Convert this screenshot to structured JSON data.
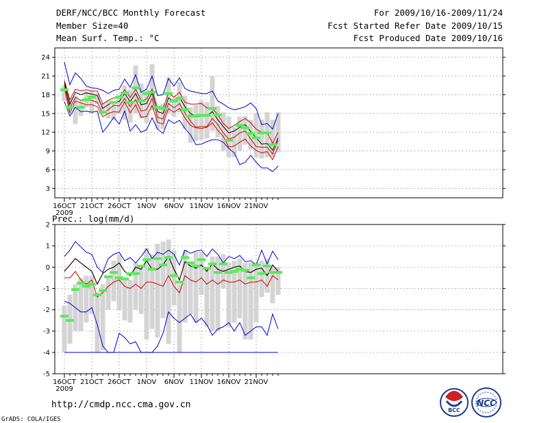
{
  "header": {
    "title": "DERF/NCC/BCC Monthly Forecast",
    "member_size": "Member Size=40",
    "temp_label": "Mean Surf. Temp.: °C",
    "period": "For 2009/10/16-2009/11/24",
    "refer_date": "Fcst Started Refer Date 2009/10/15",
    "produced_date": "Fcst Produced Date 2009/10/16"
  },
  "footer": {
    "url": "http://cmdp.ncc.cma.gov.cn",
    "grads": "GrADS: COLA/IGES",
    "logo_bcc": "BCC",
    "logo_ncc": "NCC"
  },
  "colors": {
    "max_min": "#0000cc",
    "spread": "#cc0000",
    "mean": "#000000",
    "obs": "#55ee55",
    "box": "#d4d4d4"
  },
  "chart_data": [
    {
      "type": "line",
      "title": "Mean Surf. Temp.: °C",
      "x_tick_labels": [
        "16OCT",
        "21OCT",
        "26OCT",
        "1NOV",
        "6NOV",
        "11NOV",
        "16NOV",
        "21NOV"
      ],
      "x_tick_days": [
        1,
        6,
        11,
        16,
        21,
        26,
        31,
        36
      ],
      "year_label": "2009",
      "ylim": [
        1.5,
        25.5
      ],
      "y_ticks": [
        3,
        6,
        9,
        12,
        15,
        18,
        21,
        24
      ],
      "grid": true,
      "days": [
        1,
        2,
        3,
        4,
        5,
        6,
        7,
        8,
        9,
        10,
        11,
        12,
        13,
        14,
        15,
        16,
        17,
        18,
        19,
        20,
        21,
        22,
        23,
        24,
        25,
        26,
        27,
        28,
        29,
        30,
        31,
        32,
        33,
        34,
        35,
        36,
        37,
        38,
        39,
        40
      ],
      "series": [
        {
          "name": "max",
          "values": [
            23.2,
            19.6,
            21.5,
            20.6,
            19.4,
            19.1,
            19.0,
            18.7,
            18.2,
            18.7,
            18.9,
            20.5,
            19.2,
            21.2,
            18.4,
            18.9,
            21.0,
            17.9,
            18.0,
            20.6,
            19.4,
            20.7,
            19.0,
            18.6,
            18.4,
            18.2,
            18.2,
            18.6,
            17.0,
            16.5,
            15.9,
            15.6,
            15.8,
            16.1,
            16.7,
            15.8,
            13.2,
            13.4,
            12.5,
            15.0
          ]
        },
        {
          "name": "upper",
          "values": [
            20.3,
            17.2,
            18.9,
            18.6,
            18.8,
            18.6,
            18.6,
            16.5,
            17.1,
            17.5,
            17.5,
            18.8,
            17.6,
            18.9,
            17.1,
            17.3,
            18.9,
            15.9,
            15.8,
            18.3,
            17.6,
            18.4,
            16.8,
            16.5,
            16.5,
            16.6,
            15.9,
            15.8,
            14.8,
            13.4,
            12.6,
            13.1,
            13.7,
            14.2,
            13.5,
            12.5,
            12.0,
            12.0,
            10.2,
            12.0
          ]
        },
        {
          "name": "mean",
          "values": [
            20.0,
            16.5,
            18.4,
            18.0,
            18.3,
            18.1,
            17.9,
            15.8,
            16.4,
            16.9,
            16.9,
            18.2,
            16.9,
            18.2,
            16.4,
            16.6,
            18.3,
            15.3,
            15.0,
            17.5,
            16.9,
            17.6,
            16.1,
            15.0,
            14.6,
            14.6,
            14.6,
            15.3,
            14.0,
            12.9,
            11.9,
            12.2,
            12.8,
            13.2,
            12.1,
            11.1,
            10.1,
            10.2,
            9.1,
            11.1
          ]
        },
        {
          "name": "lower",
          "values": [
            19.6,
            15.8,
            17.6,
            17.1,
            17.3,
            17.1,
            16.8,
            15.0,
            15.6,
            16.3,
            16.2,
            17.4,
            16.1,
            17.2,
            15.4,
            15.6,
            17.4,
            14.4,
            14.1,
            16.6,
            15.9,
            16.6,
            15.1,
            13.8,
            12.8,
            12.9,
            12.9,
            14.2,
            13.2,
            11.9,
            10.9,
            11.2,
            11.9,
            12.2,
            10.9,
            9.7,
            9.6,
            9.6,
            8.5,
            10.7
          ]
        },
        {
          "name": "lower2",
          "values": [
            19.1,
            15.1,
            17.0,
            16.7,
            16.4,
            16.4,
            16.1,
            14.5,
            15.0,
            15.3,
            15.2,
            16.9,
            15.1,
            16.4,
            14.4,
            14.5,
            16.3,
            13.6,
            13.3,
            15.8,
            15.2,
            15.8,
            14.3,
            13.1,
            12.7,
            12.6,
            12.8,
            13.5,
            12.3,
            11.3,
            9.6,
            9.8,
            10.4,
            10.9,
            9.8,
            9.1,
            8.7,
            8.9,
            7.6,
            9.7
          ]
        },
        {
          "name": "min",
          "values": [
            16.9,
            14.6,
            16.0,
            15.3,
            15.4,
            15.2,
            15.4,
            12.0,
            13.1,
            14.4,
            13.3,
            15.4,
            12.2,
            13.2,
            12.0,
            12.4,
            14.3,
            12.5,
            11.8,
            14.0,
            13.4,
            13.9,
            12.6,
            11.6,
            10.0,
            10.1,
            10.5,
            10.8,
            10.8,
            10.4,
            9.4,
            8.7,
            6.8,
            7.2,
            8.3,
            7.2,
            6.3,
            6.3,
            5.7,
            6.6
          ]
        },
        {
          "name": "box_top",
          "values": [
            19.5,
            17.5,
            17.8,
            17.0,
            18.5,
            18.6,
            18.2,
            16.6,
            17.0,
            17.0,
            18.0,
            19.5,
            18.8,
            22.7,
            19.8,
            18.8,
            22.9,
            16.0,
            16.6,
            20.8,
            17.5,
            20.0,
            17.8,
            16.0,
            16.3,
            17.1,
            16.8,
            21.0,
            16.2,
            15.2,
            14.5,
            12.8,
            14.5,
            14.6,
            14.0,
            15.0,
            14.0,
            15.2,
            14.0,
            15.2
          ]
        },
        {
          "name": "box_bottom",
          "values": [
            17.0,
            15.4,
            13.3,
            14.6,
            16.0,
            15.1,
            16.5,
            15.2,
            14.2,
            14.0,
            15.0,
            14.0,
            13.5,
            15.0,
            14.2,
            13.5,
            15.5,
            12.5,
            12.5,
            15.0,
            14.5,
            15.2,
            12.5,
            10.3,
            10.6,
            10.8,
            11.0,
            12.2,
            11.2,
            9.0,
            8.0,
            8.0,
            9.0,
            10.0,
            9.2,
            8.0,
            7.8,
            8.0,
            8.0,
            8.8
          ]
        },
        {
          "name": "observed",
          "values": [
            18.8,
            16.0,
            null,
            16.0,
            17.2,
            17.6,
            null,
            15.2,
            null,
            16.8,
            17.6,
            18.3,
            16.8,
            19.1,
            17.0,
            18.2,
            18.4,
            16.0,
            15.8,
            18.2,
            17.0,
            17.4,
            15.6,
            14.6,
            14.6,
            14.7,
            14.7,
            15.8,
            14.8,
            null,
            10.7,
            null,
            13.1,
            12.7,
            11.8,
            11.1,
            11.9,
            11.9,
            10.0,
            null
          ]
        }
      ]
    },
    {
      "type": "line",
      "title": "Prec.: log(mm/d)",
      "x_tick_labels": [
        "16OCT",
        "21OCT",
        "26OCT",
        "1NOV",
        "6NOV",
        "11NOV",
        "16NOV",
        "21NOV"
      ],
      "x_tick_days": [
        1,
        6,
        11,
        16,
        21,
        26,
        31,
        36
      ],
      "year_label": "2009",
      "ylim": [
        -5,
        2
      ],
      "y_ticks": [
        -5,
        -4,
        -3,
        -2,
        -1,
        0,
        1,
        2
      ],
      "grid": true,
      "days": [
        1,
        2,
        3,
        4,
        5,
        6,
        7,
        8,
        9,
        10,
        11,
        12,
        13,
        14,
        15,
        16,
        17,
        18,
        19,
        20,
        21,
        22,
        23,
        24,
        25,
        26,
        27,
        28,
        29,
        30,
        31,
        32,
        33,
        34,
        35,
        36,
        37,
        38,
        39,
        40
      ],
      "series": [
        {
          "name": "max",
          "values": [
            0.5,
            0.8,
            1.2,
            0.95,
            0.7,
            0.6,
            0.0,
            -0.25,
            0.4,
            0.6,
            0.7,
            0.3,
            0.45,
            0.2,
            0.5,
            0.85,
            0.4,
            0.7,
            0.6,
            0.8,
            0.6,
            0.1,
            0.8,
            0.65,
            0.75,
            0.8,
            0.5,
            0.85,
            0.6,
            0.2,
            0.5,
            0.4,
            0.55,
            0.25,
            0.3,
            0.1,
            0.8,
            0.15,
            0.75,
            0.35
          ]
        },
        {
          "name": "upper",
          "values": [
            -0.2,
            0.1,
            0.4,
            0.2,
            0.0,
            -0.2,
            -0.8,
            -0.3,
            -0.1,
            0.0,
            0.2,
            -0.2,
            -0.4,
            0.0,
            -0.1,
            0.3,
            -0.1,
            -0.1,
            0.1,
            0.5,
            -0.1,
            -0.6,
            0.25,
            0.05,
            -0.05,
            0.1,
            -0.2,
            0.15,
            -0.1,
            -0.2,
            -0.1,
            0.0,
            0.05,
            -0.2,
            -0.25,
            -0.1,
            -0.05,
            -0.4,
            0.1,
            -0.2
          ]
        },
        {
          "name": "lower",
          "values": [
            -0.5,
            -0.5,
            -0.2,
            -0.6,
            -0.8,
            -0.6,
            -1.4,
            -1.2,
            -0.9,
            -0.7,
            -0.6,
            -0.9,
            -1.0,
            -0.8,
            -1.0,
            -0.7,
            -0.7,
            -0.8,
            -0.9,
            -0.4,
            -0.9,
            -1.2,
            -0.4,
            -0.6,
            -0.7,
            -0.5,
            -0.8,
            -0.6,
            -0.8,
            -0.6,
            -0.7,
            -0.7,
            -0.6,
            -0.8,
            -0.7,
            -0.7,
            -0.6,
            -0.9,
            -0.4,
            -0.6
          ]
        },
        {
          "name": "min",
          "values": [
            -1.6,
            -1.7,
            -1.9,
            -2.1,
            -2.1,
            -1.9,
            -2.7,
            -3.7,
            -4.0,
            -4.0,
            -3.1,
            -3.3,
            -3.6,
            -3.5,
            -4.0,
            -4.0,
            -4.0,
            -3.7,
            -3.1,
            -2.1,
            -2.4,
            -2.6,
            -2.4,
            -2.2,
            -2.6,
            -2.4,
            -2.7,
            -3.2,
            -2.9,
            -2.8,
            -2.6,
            -3.0,
            -2.6,
            -3.2,
            -3.0,
            -2.8,
            -2.8,
            -3.2,
            -2.2,
            -2.9
          ]
        },
        {
          "name": "floor",
          "values": [
            -4.0,
            -4.0,
            -4.0,
            -4.0,
            -4.0,
            -4.0,
            -4.0,
            -4.0,
            -4.0,
            -4.0,
            -4.0,
            -4.0,
            -4.0,
            -4.0,
            -4.0,
            -4.0,
            -4.0,
            -4.0,
            -4.0,
            -4.0,
            -4.0,
            -4.0,
            -4.0,
            -4.0,
            -4.0,
            -4.0,
            -4.0,
            -4.0,
            -4.0,
            -4.0,
            -4.0,
            -4.0,
            -4.0,
            -4.0,
            -4.0,
            -4.0,
            -4.0,
            -4.0,
            -4.0,
            -4.0
          ]
        },
        {
          "name": "box_top",
          "values": [
            -1.8,
            -1.3,
            -0.8,
            -0.5,
            -0.4,
            -0.4,
            -1.2,
            -0.8,
            -0.5,
            0.3,
            0.6,
            -0.5,
            -0.6,
            0.2,
            0.1,
            0.9,
            0.6,
            1.1,
            1.2,
            1.3,
            0.8,
            -0.8,
            0.8,
            0.2,
            0.7,
            0.7,
            0.0,
            0.5,
            0.5,
            0.6,
            0.2,
            0.3,
            0.4,
            0.2,
            0.2,
            0.2,
            0.3,
            0.4,
            0.0,
            0.0
          ]
        },
        {
          "name": "box_bottom",
          "values": [
            -4.0,
            -3.6,
            -3.0,
            -3.0,
            -2.6,
            -2.2,
            -4.0,
            -3.9,
            -2.0,
            -1.6,
            -2.0,
            -2.5,
            -2.6,
            -2.0,
            -2.2,
            -3.4,
            -2.9,
            -3.3,
            -2.4,
            -3.6,
            -1.8,
            -4.0,
            -2.6,
            -2.2,
            -2.6,
            -1.3,
            -2.8,
            -3.0,
            -3.0,
            -1.0,
            -2.8,
            -2.6,
            -2.4,
            -3.4,
            -3.4,
            -2.6,
            -1.4,
            -1.2,
            -1.7,
            -1.3
          ]
        },
        {
          "name": "mean",
          "values": [
            -0.2,
            0.1,
            0.4,
            0.2,
            0.0,
            -0.2,
            -0.8,
            -0.3,
            -0.1,
            0.0,
            0.2,
            -0.2,
            -0.4,
            0.0,
            -0.1,
            0.3,
            -0.1,
            -0.1,
            0.1,
            0.5,
            -0.1,
            -0.6,
            0.25,
            0.05,
            -0.05,
            0.1,
            -0.2,
            0.15,
            -0.1,
            -0.2,
            -0.1,
            0.0,
            0.05,
            -0.2,
            -0.25,
            -0.1,
            -0.05,
            -0.4,
            0.1,
            -0.2
          ]
        },
        {
          "name": "observed",
          "values": [
            -2.3,
            -2.5,
            -1.05,
            -0.75,
            -0.9,
            -0.8,
            -1.3,
            -1.1,
            -0.45,
            -0.25,
            -0.5,
            -0.55,
            -0.3,
            -0.3,
            0.05,
            0.35,
            -0.1,
            0.4,
            0.1,
            0.45,
            -0.4,
            -0.7,
            0.45,
            0.2,
            0.05,
            0.35,
            -0.05,
            0.15,
            -0.25,
            0.15,
            -0.25,
            -0.2,
            -0.1,
            -0.15,
            -0.5,
            0.1,
            -0.3,
            0.05,
            -0.25,
            -0.25
          ]
        }
      ]
    }
  ]
}
